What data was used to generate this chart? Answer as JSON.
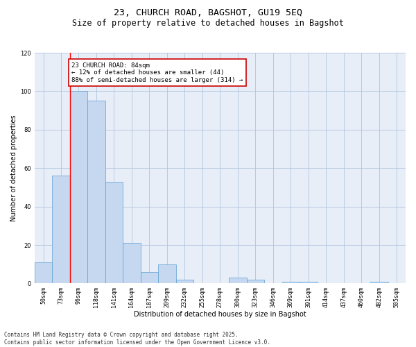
{
  "title_line1": "23, CHURCH ROAD, BAGSHOT, GU19 5EQ",
  "title_line2": "Size of property relative to detached houses in Bagshot",
  "xlabel": "Distribution of detached houses by size in Bagshot",
  "ylabel": "Number of detached properties",
  "categories": [
    "50sqm",
    "73sqm",
    "96sqm",
    "118sqm",
    "141sqm",
    "164sqm",
    "187sqm",
    "209sqm",
    "232sqm",
    "255sqm",
    "278sqm",
    "300sqm",
    "323sqm",
    "346sqm",
    "369sqm",
    "391sqm",
    "414sqm",
    "437sqm",
    "460sqm",
    "482sqm",
    "505sqm"
  ],
  "values": [
    11,
    56,
    100,
    95,
    53,
    21,
    6,
    10,
    2,
    0,
    0,
    3,
    2,
    0,
    1,
    1,
    0,
    0,
    0,
    1,
    0
  ],
  "bar_color": "#c5d8f0",
  "bar_edge_color": "#5a9fd4",
  "bar_edge_width": 0.5,
  "ylim": [
    0,
    120
  ],
  "yticks": [
    0,
    20,
    40,
    60,
    80,
    100,
    120
  ],
  "grid_color": "#b0c4de",
  "background_color": "#e8eef8",
  "red_line_x": 1.5,
  "annotation_text": "23 CHURCH ROAD: 84sqm\n← 12% of detached houses are smaller (44)\n88% of semi-detached houses are larger (314) →",
  "annotation_box_color": "#ffffff",
  "annotation_box_edge": "#cc0000",
  "footer_text": "Contains HM Land Registry data © Crown copyright and database right 2025.\nContains public sector information licensed under the Open Government Licence v3.0.",
  "title_fontsize": 9.5,
  "subtitle_fontsize": 8.5,
  "label_fontsize": 7,
  "tick_fontsize": 6,
  "annot_fontsize": 6.5,
  "footer_fontsize": 5.5
}
